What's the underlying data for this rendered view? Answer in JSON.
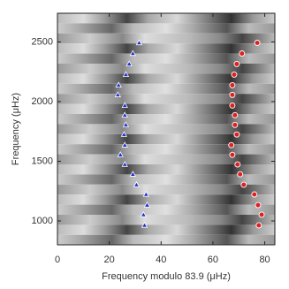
{
  "chart_data": {
    "type": "scatter",
    "x_label": "Frequency modulo 83.9 (μHz)",
    "y_label": "Frequency (μHz)",
    "xlim": [
      0,
      83.9
    ],
    "ylim": [
      800,
      2740
    ],
    "xticks": [
      0,
      20,
      40,
      60,
      80
    ],
    "yticks": [
      1000,
      1500,
      2000,
      2500
    ],
    "series": [
      {
        "marker": "triangle",
        "color": "#2233cc",
        "x": [
          33.6,
          33.2,
          34.6,
          34.2,
          30.5,
          29.1,
          26.0,
          24.3,
          26.0,
          25.7,
          26.4,
          26.0,
          26.0,
          23.3,
          23.6,
          26.4,
          27.7,
          29.1,
          31.5
        ],
        "y": [
          963,
          1052,
          1133,
          1222,
          1303,
          1391,
          1473,
          1554,
          1635,
          1724,
          1805,
          1886,
          1967,
          2056,
          2137,
          2226,
          2315,
          2403,
          2492
        ]
      },
      {
        "marker": "circle",
        "color": "#dd2222",
        "x": [
          77.7,
          78.8,
          77.4,
          76.0,
          71.9,
          70.5,
          69.5,
          67.5,
          67.1,
          69.2,
          68.5,
          68.5,
          67.5,
          67.5,
          67.5,
          68.2,
          69.2,
          71.2,
          77.1
        ],
        "y": [
          963,
          1052,
          1133,
          1222,
          1303,
          1391,
          1473,
          1554,
          1635,
          1724,
          1805,
          1886,
          1967,
          2056,
          2137,
          2226,
          2315,
          2403,
          2492
        ]
      }
    ]
  }
}
